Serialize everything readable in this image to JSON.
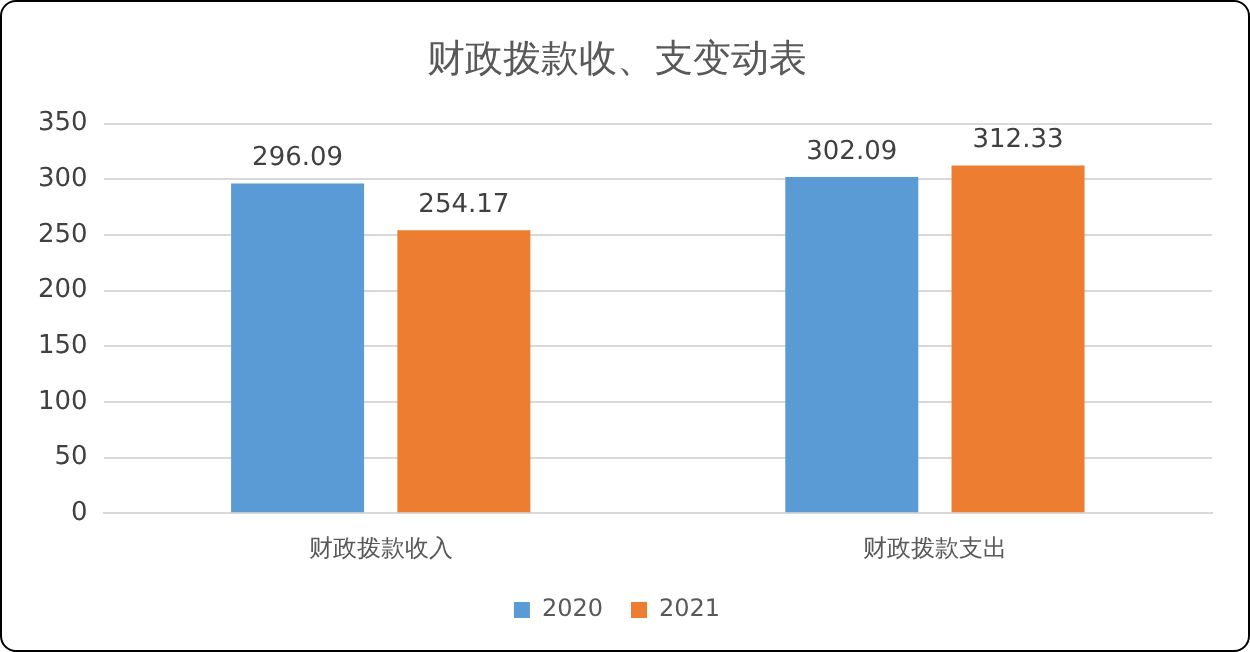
{
  "chart_data": {
    "type": "bar",
    "title": "财政拨款收、支变动表",
    "categories": [
      "财政拨款收入",
      "财政拨款支出"
    ],
    "series": [
      {
        "name": "2020",
        "color": "#5b9bd5",
        "values": [
          296.09,
          302.09
        ]
      },
      {
        "name": "2021",
        "color": "#ed7d31",
        "values": [
          254.17,
          312.33
        ]
      }
    ],
    "ylim": [
      0,
      350
    ],
    "yticks": [
      0,
      50,
      100,
      150,
      200,
      250,
      300,
      350
    ],
    "grid": "y",
    "legend": "bottom",
    "data_labels": true
  }
}
